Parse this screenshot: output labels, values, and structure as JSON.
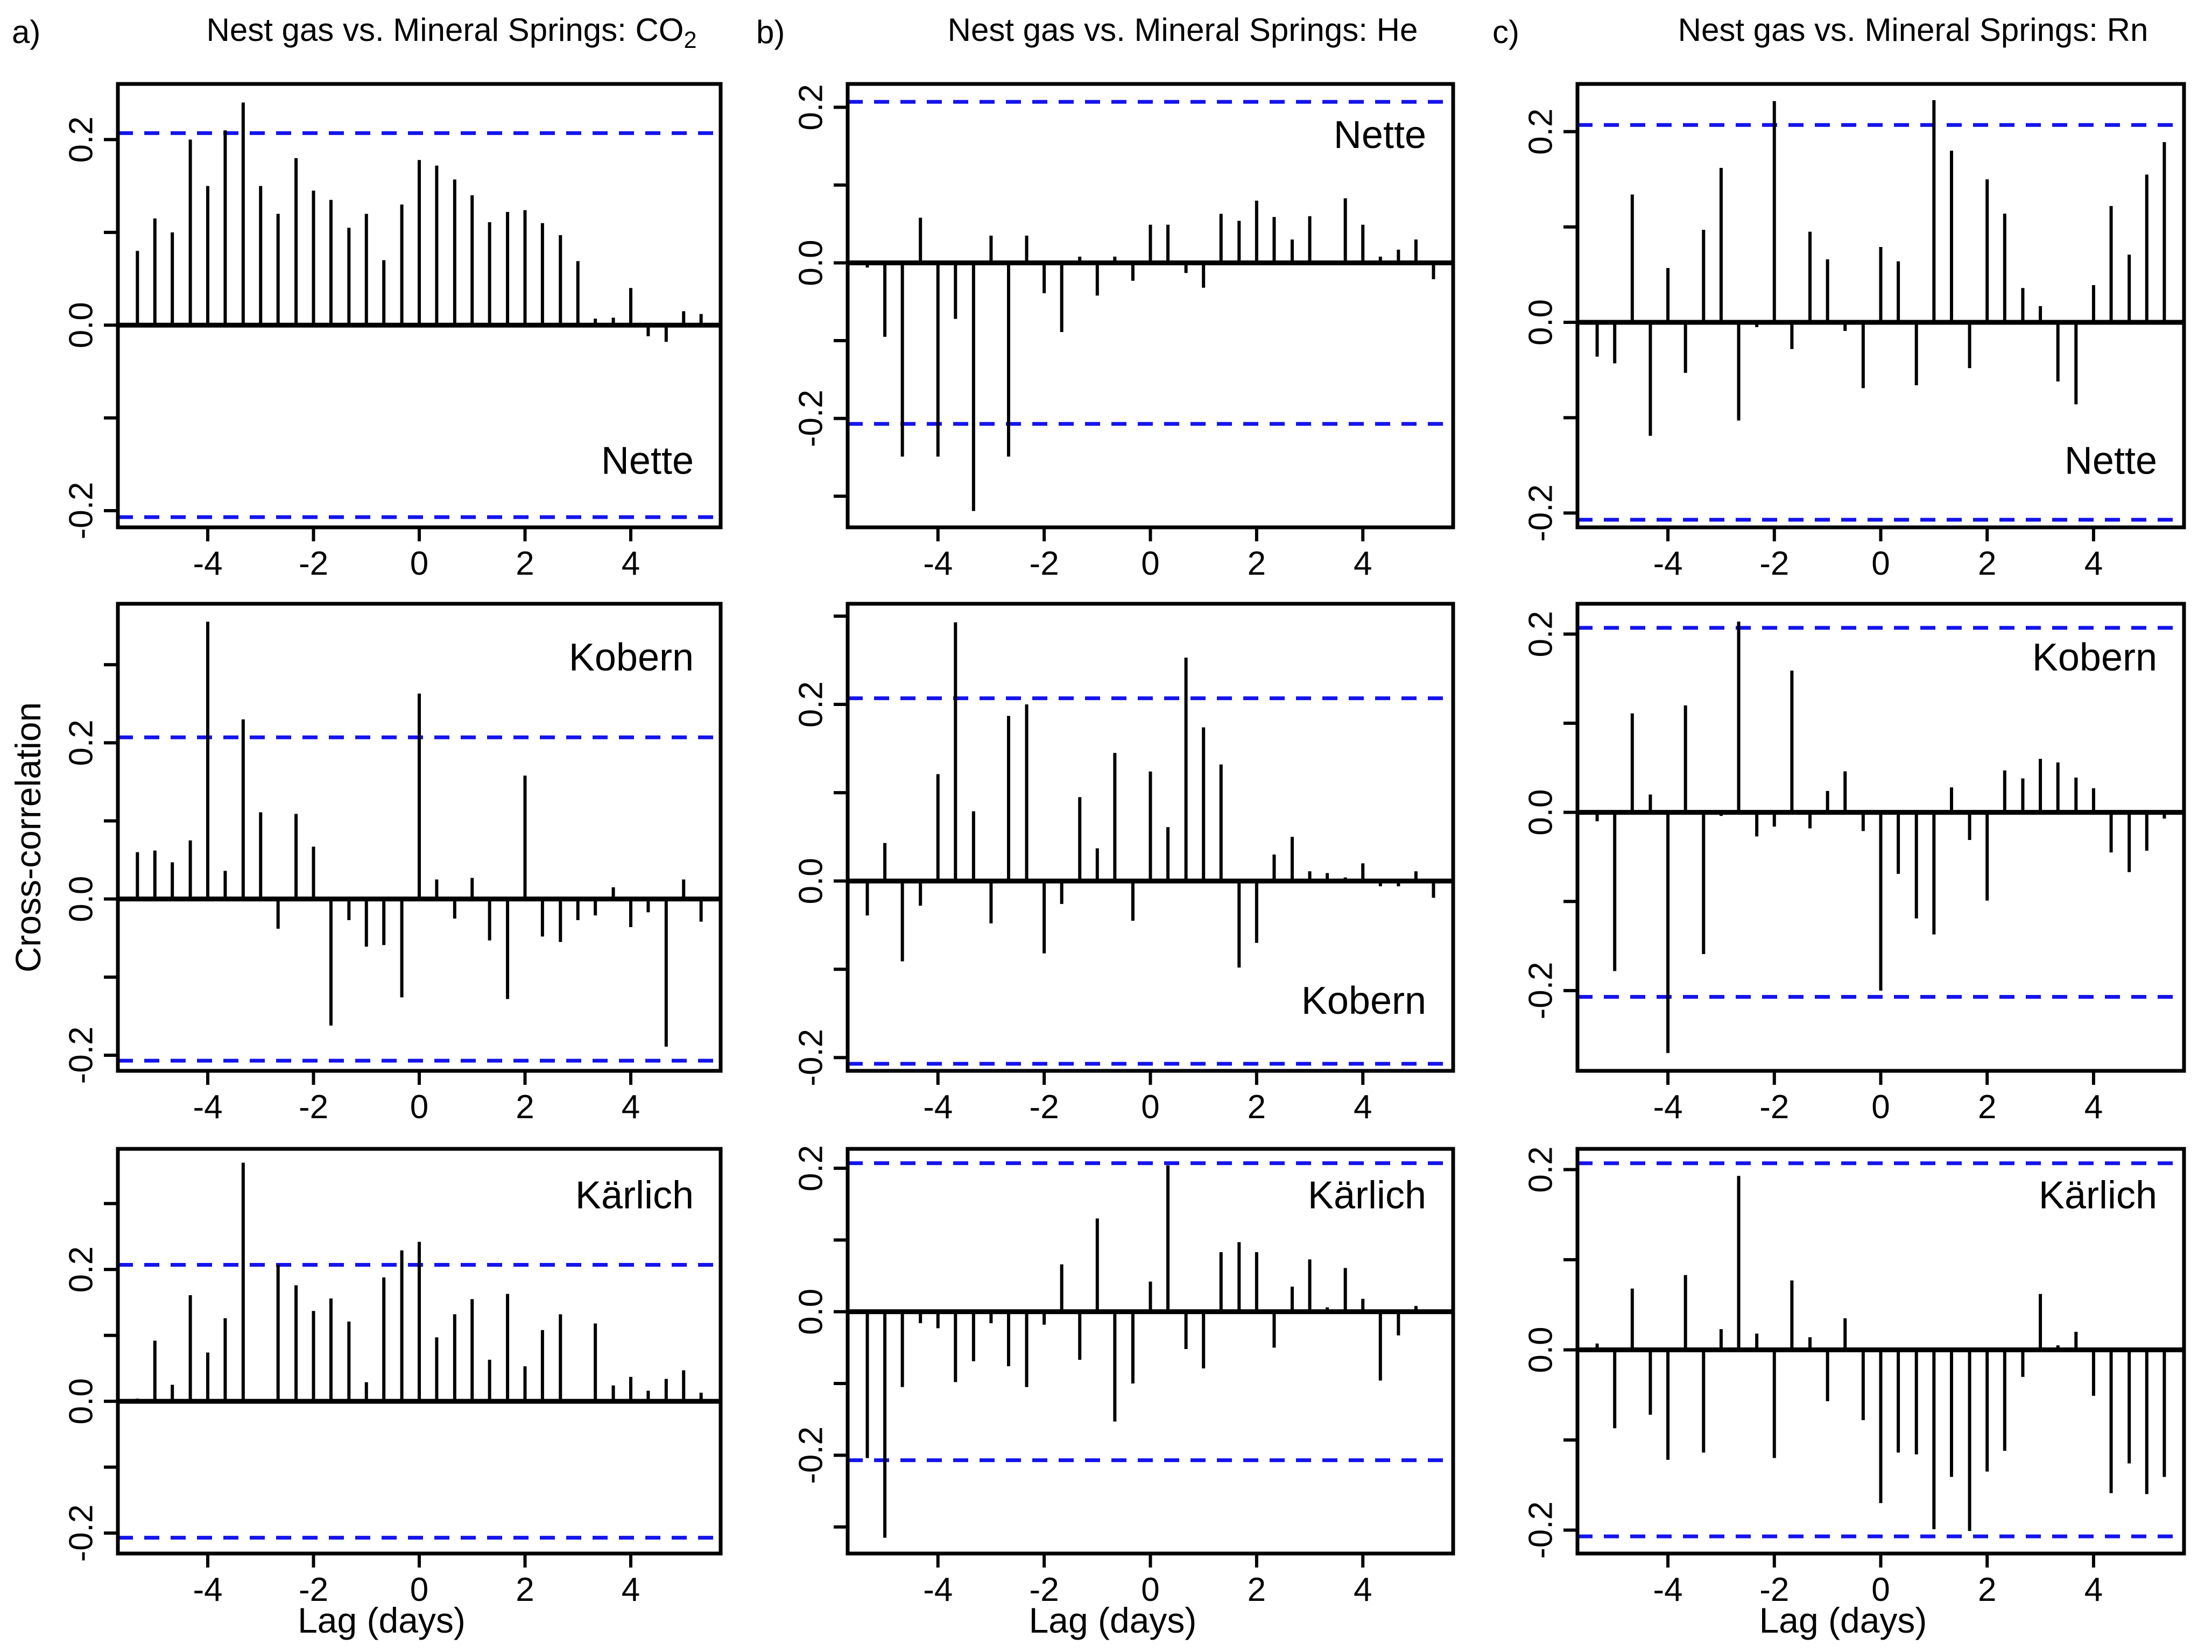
{
  "figure": {
    "columns": [
      {
        "letter": "a)",
        "title_main": "Nest gas vs. Mineral Springs: CO",
        "title_sub": "2",
        "gas": "CO2"
      },
      {
        "letter": "b)",
        "title_main": "Nest gas vs. Mineral Springs: He",
        "title_sub": "",
        "gas": "He"
      },
      {
        "letter": "c)",
        "title_main": "Nest gas vs. Mineral Springs: Rn",
        "title_sub": "",
        "gas": "Rn"
      }
    ],
    "y_axis_title": "Cross-correlation",
    "x_axis_title": "Lag (days)",
    "colors": {
      "bar": "#000000",
      "axis": "#000000",
      "significance_line": "#1414ee",
      "background": "#ffffff"
    }
  },
  "chart_data": {
    "type": "bar",
    "layout": "3x3 grid of cross-correlograms; columns = gas (CO2, He, Rn), rows = spring station (Nette, Kobern, Kaerlich)",
    "x": {
      "label": "Lag (days)",
      "xlim": [
        -5.7,
        5.7
      ],
      "xticks": [
        -4,
        -2,
        0,
        2,
        4
      ],
      "lags_days": [
        -5.33,
        -5,
        -4.67,
        -4.33,
        -4,
        -3.67,
        -3.33,
        -3,
        -2.67,
        -2.33,
        -2,
        -1.67,
        -1.33,
        -1,
        -0.67,
        -0.33,
        0,
        0.33,
        0.67,
        1,
        1.33,
        1.67,
        2,
        2.33,
        2.67,
        3,
        3.33,
        3.67,
        4,
        4.33,
        4.67,
        5,
        5.33
      ]
    },
    "y": {
      "label": "Cross-correlation",
      "tick_step": 0.1,
      "labeled_ticks": [
        -0.2,
        0.0,
        0.2
      ]
    },
    "confidence_level": 0.207,
    "panels": [
      {
        "gas": "CO2",
        "station": "Nette",
        "row": 0,
        "col": 0,
        "station_label_pos": "bottom",
        "ylim": [
          -0.218,
          0.26
        ],
        "values": [
          0.08,
          0.115,
          0.1,
          0.2,
          0.15,
          0.21,
          0.24,
          0.15,
          0.12,
          0.18,
          0.145,
          0.135,
          0.105,
          0.12,
          0.07,
          0.13,
          0.178,
          0.172,
          0.157,
          0.14,
          0.111,
          0.122,
          0.124,
          0.11,
          0.097,
          0.069,
          0.007,
          0.008,
          0.04,
          -0.012,
          -0.018,
          0.015,
          0.012
        ]
      },
      {
        "gas": "CO2",
        "station": "Kobern",
        "row": 1,
        "col": 0,
        "station_label_pos": "top",
        "ylim": [
          -0.22,
          0.378
        ],
        "values": [
          0.06,
          0.062,
          0.047,
          0.075,
          0.355,
          0.036,
          0.23,
          0.111,
          -0.038,
          0.109,
          0.067,
          -0.162,
          -0.027,
          -0.061,
          -0.059,
          -0.126,
          0.263,
          0.025,
          -0.025,
          0.027,
          -0.053,
          -0.128,
          0.158,
          -0.048,
          -0.055,
          -0.027,
          -0.021,
          0.015,
          -0.036,
          -0.017,
          -0.189,
          0.025,
          -0.029
        ]
      },
      {
        "gas": "CO2",
        "station": "Kärlich",
        "row": 2,
        "col": 0,
        "station_label_pos": "top",
        "ylim": [
          -0.231,
          0.383
        ],
        "values": [
          0.004,
          0.092,
          0.025,
          0.161,
          0.074,
          0.126,
          0.362,
          0.0,
          0.207,
          0.176,
          0.137,
          0.156,
          0.121,
          0.029,
          0.188,
          0.229,
          0.242,
          0.097,
          0.132,
          0.155,
          0.063,
          0.163,
          0.053,
          0.108,
          0.132,
          0.003,
          0.118,
          0.024,
          0.037,
          0.016,
          0.034,
          0.047,
          0.013
        ]
      },
      {
        "gas": "He",
        "station": "Nette",
        "row": 0,
        "col": 1,
        "station_label_pos": "top",
        "ylim": [
          -0.34,
          0.23
        ],
        "values": [
          -0.006,
          -0.095,
          -0.249,
          0.058,
          -0.249,
          -0.072,
          -0.319,
          0.035,
          -0.249,
          0.035,
          -0.039,
          -0.089,
          0.008,
          -0.042,
          0.008,
          -0.023,
          0.049,
          0.049,
          -0.013,
          -0.032,
          0.063,
          0.054,
          0.08,
          0.059,
          0.03,
          0.06,
          0.002,
          0.083,
          0.049,
          0.008,
          0.017,
          0.03,
          -0.021
        ]
      },
      {
        "gas": "He",
        "station": "Kobern",
        "row": 1,
        "col": 1,
        "station_label_pos": "bottom",
        "ylim": [
          -0.215,
          0.314
        ],
        "values": [
          -0.039,
          0.043,
          -0.091,
          -0.028,
          0.121,
          0.293,
          0.079,
          -0.048,
          0.187,
          0.2,
          -0.082,
          -0.026,
          0.095,
          0.037,
          0.145,
          -0.045,
          0.124,
          0.061,
          0.253,
          0.174,
          0.132,
          -0.098,
          -0.07,
          0.03,
          0.05,
          0.011,
          0.009,
          0.004,
          0.02,
          -0.006,
          -0.006,
          0.011,
          -0.019
        ]
      },
      {
        "gas": "He",
        "station": "Kärlich",
        "row": 2,
        "col": 1,
        "station_label_pos": "top",
        "ylim": [
          -0.337,
          0.227
        ],
        "values": [
          -0.204,
          -0.315,
          -0.105,
          -0.016,
          -0.023,
          -0.098,
          -0.069,
          -0.016,
          -0.076,
          -0.105,
          -0.018,
          0.066,
          -0.067,
          0.13,
          -0.153,
          -0.1,
          0.042,
          0.204,
          -0.052,
          -0.079,
          0.083,
          0.097,
          0.083,
          -0.05,
          0.035,
          0.073,
          0.006,
          0.061,
          0.018,
          -0.096,
          -0.033,
          0.008,
          0.003
        ]
      },
      {
        "gas": "Rn",
        "station": "Nette",
        "row": 0,
        "col": 2,
        "station_label_pos": "bottom",
        "ylim": [
          -0.215,
          0.25
        ],
        "values": [
          -0.036,
          -0.043,
          0.134,
          -0.119,
          0.057,
          -0.053,
          0.097,
          0.162,
          -0.103,
          -0.005,
          0.232,
          -0.028,
          0.095,
          0.066,
          -0.009,
          -0.069,
          0.079,
          0.064,
          -0.066,
          0.233,
          0.18,
          -0.048,
          0.15,
          0.114,
          0.036,
          0.017,
          -0.062,
          -0.086,
          0.039,
          0.122,
          0.071,
          0.155,
          0.189
        ]
      },
      {
        "gas": "Rn",
        "station": "Kobern",
        "row": 1,
        "col": 2,
        "station_label_pos": "top",
        "ylim": [
          -0.29,
          0.234
        ],
        "values": [
          -0.01,
          -0.178,
          0.111,
          0.02,
          -0.27,
          0.12,
          -0.159,
          -0.004,
          0.214,
          -0.027,
          -0.016,
          0.159,
          -0.018,
          0.024,
          0.046,
          -0.021,
          -0.2,
          -0.069,
          -0.119,
          -0.137,
          0.028,
          -0.031,
          -0.099,
          0.047,
          0.038,
          0.06,
          0.056,
          0.039,
          0.027,
          -0.045,
          -0.067,
          -0.043,
          -0.007
        ]
      },
      {
        "gas": "Rn",
        "station": "Kärlich",
        "row": 2,
        "col": 2,
        "station_label_pos": "top",
        "ylim": [
          -0.226,
          0.223
        ],
        "values": [
          0.007,
          -0.087,
          0.068,
          -0.072,
          -0.122,
          0.083,
          -0.114,
          0.023,
          0.193,
          0.018,
          -0.12,
          0.077,
          0.014,
          -0.057,
          0.035,
          -0.078,
          -0.17,
          -0.114,
          -0.116,
          -0.199,
          -0.141,
          -0.201,
          -0.135,
          -0.112,
          -0.03,
          0.062,
          0.005,
          0.02,
          -0.051,
          -0.159,
          -0.126,
          -0.16,
          -0.141
        ]
      }
    ]
  }
}
